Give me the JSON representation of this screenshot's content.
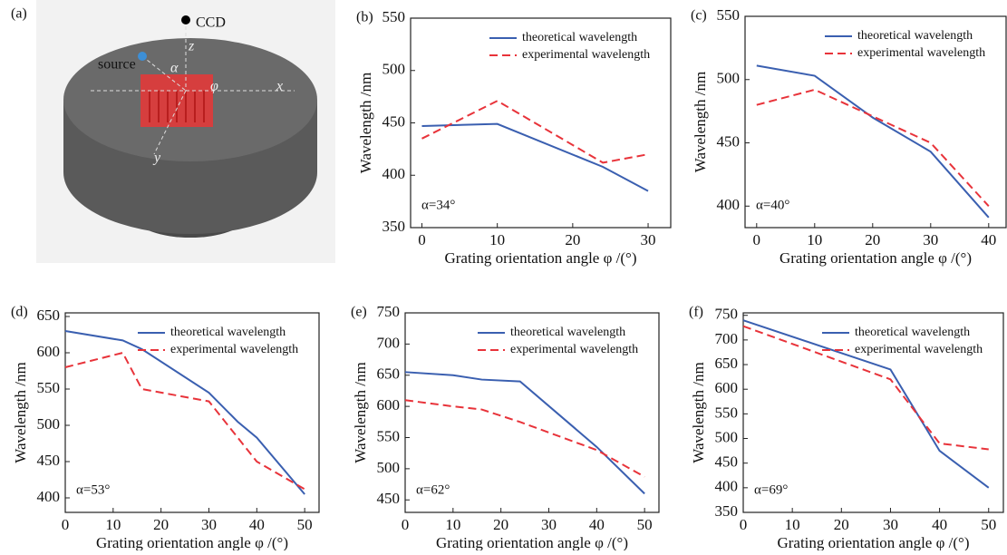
{
  "panel_a": {
    "label": "(a)",
    "ccd": "CCD",
    "source": "source",
    "z": "z",
    "x": "x",
    "y": "y",
    "alpha": "α",
    "phi": "φ"
  },
  "chart_data": [
    {
      "type": "line",
      "panel": "(b)",
      "annotation": "α=34°",
      "x_label": "Grating orientation angle φ /(°)",
      "y_label": "Wavelength /nm",
      "xlim": [
        -1.5,
        33
      ],
      "ylim": [
        350,
        550
      ],
      "xticks": [
        0,
        10,
        20,
        30
      ],
      "yticks": [
        350,
        400,
        450,
        500,
        550
      ],
      "series": [
        {
          "name": "theoretical wavelength",
          "color": "#3a5fb0",
          "dash": false,
          "x": [
            0,
            10,
            24,
            30
          ],
          "values": [
            447,
            449,
            408,
            385
          ]
        },
        {
          "name": "experimental wavelength",
          "color": "#e8333a",
          "dash": true,
          "x": [
            0,
            10,
            24,
            30
          ],
          "values": [
            435,
            471,
            412,
            420
          ]
        }
      ]
    },
    {
      "type": "line",
      "panel": "(c)",
      "annotation": "α=40°",
      "x_label": "Grating orientation angle φ /(°)",
      "y_label": "Wavelength /nm",
      "xlim": [
        -2,
        43
      ],
      "ylim": [
        383,
        550
      ],
      "xticks": [
        0,
        10,
        20,
        30,
        40
      ],
      "yticks": [
        400,
        450,
        500,
        550
      ],
      "series": [
        {
          "name": "theoretical wavelength",
          "color": "#3a5fb0",
          "dash": false,
          "x": [
            0,
            10,
            20,
            30,
            40
          ],
          "values": [
            511,
            503,
            470,
            443,
            391
          ]
        },
        {
          "name": "experimental wavelength",
          "color": "#e8333a",
          "dash": true,
          "x": [
            0,
            10,
            20,
            30,
            40
          ],
          "values": [
            480,
            492,
            471,
            450,
            400
          ]
        }
      ]
    },
    {
      "type": "line",
      "panel": "(d)",
      "annotation": "α=53°",
      "x_label": "Grating orientation angle φ /(°)",
      "y_label": "Wavelength /nm",
      "xlim": [
        0,
        53
      ],
      "ylim": [
        380,
        655
      ],
      "xticks": [
        0,
        10,
        20,
        30,
        40,
        50
      ],
      "yticks": [
        400,
        450,
        500,
        550,
        600,
        650
      ],
      "series": [
        {
          "name": "theoretical wavelength",
          "color": "#3a5fb0",
          "dash": false,
          "x": [
            0,
            12,
            16,
            30,
            36,
            40,
            50
          ],
          "values": [
            630,
            617,
            605,
            545,
            505,
            483,
            405
          ]
        },
        {
          "name": "experimental wavelength",
          "color": "#e8333a",
          "dash": true,
          "x": [
            0,
            12,
            16,
            30,
            40,
            50
          ],
          "values": [
            580,
            600,
            550,
            533,
            450,
            412
          ]
        }
      ]
    },
    {
      "type": "line",
      "panel": "(e)",
      "annotation": "α=62°",
      "x_label": "Grating orientation angle φ /(°)",
      "y_label": "Wavelength /nm",
      "xlim": [
        0,
        53
      ],
      "ylim": [
        430,
        750
      ],
      "xticks": [
        0,
        10,
        20,
        30,
        40,
        50
      ],
      "yticks": [
        450,
        500,
        550,
        600,
        650,
        700,
        750
      ],
      "series": [
        {
          "name": "theoretical wavelength",
          "color": "#3a5fb0",
          "dash": false,
          "x": [
            0,
            10,
            16,
            24,
            40,
            50
          ],
          "values": [
            655,
            650,
            643,
            640,
            535,
            460
          ]
        },
        {
          "name": "experimental wavelength",
          "color": "#e8333a",
          "dash": true,
          "x": [
            0,
            10,
            16,
            24,
            40,
            50
          ],
          "values": [
            610,
            600,
            595,
            575,
            530,
            487
          ]
        }
      ]
    },
    {
      "type": "line",
      "panel": "(f)",
      "annotation": "α=69°",
      "x_label": "Grating orientation angle φ /(°)",
      "y_label": "Wavelength /nm",
      "xlim": [
        0,
        53
      ],
      "ylim": [
        350,
        755
      ],
      "xticks": [
        0,
        10,
        20,
        30,
        40,
        50
      ],
      "yticks": [
        350,
        400,
        450,
        500,
        550,
        600,
        650,
        700,
        750
      ],
      "series": [
        {
          "name": "theoretical wavelength",
          "color": "#3a5fb0",
          "dash": false,
          "x": [
            0,
            30,
            40,
            50
          ],
          "values": [
            740,
            640,
            475,
            400
          ]
        },
        {
          "name": "experimental wavelength",
          "color": "#e8333a",
          "dash": true,
          "x": [
            0,
            30,
            40,
            50
          ],
          "values": [
            728,
            620,
            490,
            478
          ]
        }
      ]
    }
  ]
}
